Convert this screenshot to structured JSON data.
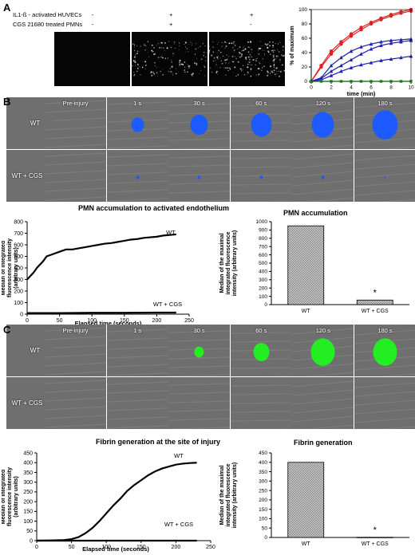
{
  "panelA": {
    "letter": "A",
    "conditions": [
      {
        "label": "IL1-ß - activated HUVECs",
        "values": [
          "-",
          "+",
          "+"
        ]
      },
      {
        "label": "CGS 21680 treated PMNs",
        "values": [
          "-",
          "+",
          "-"
        ]
      }
    ]
  },
  "panelB": {
    "letter": "B",
    "timepoints": [
      "Pre-injury",
      "1 s",
      "30 s",
      "60 s",
      "120 s",
      "180 s"
    ],
    "rows": [
      "WT",
      "WT + CGS"
    ],
    "colors": {
      "blob": "#1e5bff",
      "background": "#6f6f6f"
    }
  },
  "panelC": {
    "letter": "C",
    "timepoints": [
      "Pre-injury",
      "1 s",
      "30 s",
      "60 s",
      "120 s",
      "180 s"
    ],
    "rows": [
      "WT",
      "WT + CGS"
    ],
    "colors": {
      "blob": "#22ee22",
      "background": "#6f6f6f"
    }
  },
  "chart_data": [
    {
      "id": "A-kinetics",
      "type": "line",
      "title": "",
      "xlabel": "time (min)",
      "ylabel": "% of maximum",
      "xlim": [
        0,
        10
      ],
      "ylim": [
        0,
        100
      ],
      "xticks": [
        0,
        2,
        4,
        6,
        8,
        10
      ],
      "yticks": [
        0,
        20,
        40,
        60,
        80,
        100
      ],
      "yticklabels": [
        "0",
        "20",
        "40",
        "60",
        "80",
        "100"
      ],
      "series": [
        {
          "color": "#e02020",
          "marker": "circle",
          "x": [
            0,
            1,
            2,
            3,
            4,
            5,
            6,
            7,
            8,
            9,
            10
          ],
          "y": [
            0,
            22,
            42,
            55,
            66,
            75,
            82,
            88,
            93,
            97,
            100
          ]
        },
        {
          "color": "#e02020",
          "marker": "circle",
          "x": [
            0,
            1,
            2,
            3,
            4,
            5,
            6,
            7,
            8,
            9,
            10
          ],
          "y": [
            0,
            20,
            38,
            52,
            63,
            72,
            80,
            86,
            91,
            95,
            98
          ]
        },
        {
          "color": "#2020b0",
          "marker": "triangle",
          "x": [
            0,
            1,
            2,
            3,
            4,
            5,
            6,
            7,
            8,
            9,
            10
          ],
          "y": [
            0,
            5,
            22,
            33,
            42,
            48,
            52,
            55,
            57,
            58,
            59
          ]
        },
        {
          "color": "#2020b0",
          "marker": "triangle",
          "x": [
            0,
            1,
            2,
            3,
            4,
            5,
            6,
            7,
            8,
            9,
            10
          ],
          "y": [
            0,
            4,
            14,
            22,
            30,
            38,
            45,
            50,
            53,
            55,
            57
          ]
        },
        {
          "color": "#2020b0",
          "marker": "triangle",
          "x": [
            0,
            1,
            2,
            3,
            4,
            5,
            6,
            7,
            8,
            9,
            10
          ],
          "y": [
            0,
            2,
            8,
            14,
            19,
            23,
            26,
            29,
            31,
            33,
            35
          ]
        },
        {
          "color": "#22aa22",
          "marker": "square",
          "x": [
            0,
            1,
            2,
            3,
            4,
            5,
            6,
            7,
            8,
            9,
            10
          ],
          "y": [
            0,
            0,
            0,
            0,
            0,
            0,
            0,
            0,
            0,
            0,
            0
          ]
        }
      ]
    },
    {
      "id": "B-line",
      "type": "line",
      "title": "PMN accumulation to activated endothelium",
      "xlabel": "Elapsed time (seconds)",
      "ylabel": "Median of integrated fluorescence intensity (arbitrary units)",
      "xlim": [
        0,
        250
      ],
      "ylim": [
        0,
        800
      ],
      "xticks": [
        0,
        50,
        100,
        150,
        200,
        250
      ],
      "yticks": [
        0,
        100,
        200,
        300,
        400,
        500,
        600,
        700,
        800
      ],
      "series": [
        {
          "name": "WT",
          "x": [
            0,
            5,
            10,
            15,
            20,
            25,
            30,
            40,
            50,
            60,
            70,
            80,
            90,
            100,
            110,
            120,
            130,
            140,
            150,
            160,
            170,
            180,
            190,
            200,
            210,
            220,
            230
          ],
          "y": [
            300,
            330,
            360,
            400,
            430,
            460,
            500,
            520,
            540,
            560,
            560,
            570,
            580,
            590,
            600,
            610,
            615,
            625,
            635,
            645,
            650,
            660,
            665,
            670,
            680,
            685,
            690
          ]
        },
        {
          "name": "WT + CGS",
          "x": [
            0,
            50,
            100,
            150,
            200,
            230
          ],
          "y": [
            10,
            10,
            12,
            12,
            14,
            14
          ]
        }
      ]
    },
    {
      "id": "B-bar",
      "type": "bar",
      "title": "PMN accumulation",
      "ylabel": "Median of the maximal integrated fluorescence intensity (arbitrary units)",
      "categories": [
        "WT",
        "WT + CGS"
      ],
      "values": [
        950,
        55
      ],
      "ylim": [
        0,
        1000
      ],
      "yticks": [
        0,
        100,
        200,
        300,
        400,
        500,
        600,
        700,
        800,
        900,
        1000
      ],
      "annotation": "*"
    },
    {
      "id": "C-line",
      "type": "line",
      "title": "Fibrin generation at the site of injury",
      "xlabel": "Elapsed time (seconds)",
      "ylabel": "Median of integrated fluorescence intensity (arbitrary units)",
      "xlim": [
        0,
        250
      ],
      "ylim": [
        0,
        450
      ],
      "xticks": [
        0,
        50,
        100,
        150,
        200,
        250
      ],
      "yticks": [
        0,
        50,
        100,
        150,
        200,
        250,
        300,
        350,
        400,
        450
      ],
      "series": [
        {
          "name": "WT",
          "x": [
            0,
            20,
            40,
            50,
            60,
            70,
            80,
            90,
            100,
            110,
            120,
            130,
            140,
            150,
            160,
            170,
            180,
            190,
            200,
            210,
            220,
            230
          ],
          "y": [
            0,
            1,
            3,
            8,
            18,
            38,
            65,
            100,
            140,
            180,
            215,
            255,
            285,
            310,
            335,
            355,
            370,
            380,
            390,
            395,
            398,
            400
          ]
        },
        {
          "name": "WT + CGS",
          "x": [
            0,
            50,
            100,
            150,
            200,
            230
          ],
          "y": [
            0,
            0,
            0,
            0,
            0,
            0
          ]
        }
      ]
    },
    {
      "id": "C-bar",
      "type": "bar",
      "title": "Fibrin generation",
      "ylabel": "Median of the maximal integrated fluorescence intensity (arbitrary units)",
      "categories": [
        "WT",
        "WT + CGS"
      ],
      "values": [
        400,
        1
      ],
      "ylim": [
        0,
        450
      ],
      "yticks": [
        0,
        50,
        100,
        150,
        200,
        250,
        300,
        350,
        400,
        450
      ],
      "annotation": "*"
    }
  ]
}
